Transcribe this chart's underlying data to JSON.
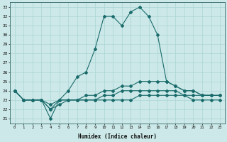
{
  "xlabel": "Humidex (Indice chaleur)",
  "ylabel": "",
  "background_color": "#cce8e8",
  "grid_color": "#aad4d4",
  "line_color": "#1a6b6b",
  "xlim": [
    -0.5,
    23.5
  ],
  "ylim": [
    20.5,
    33.5
  ],
  "yticks": [
    21,
    22,
    23,
    24,
    25,
    26,
    27,
    28,
    29,
    30,
    31,
    32,
    33
  ],
  "xticks": [
    0,
    1,
    2,
    3,
    4,
    5,
    6,
    7,
    8,
    9,
    10,
    11,
    12,
    13,
    14,
    15,
    16,
    17,
    18,
    19,
    20,
    21,
    22,
    23
  ],
  "lines": [
    {
      "x": [
        0,
        1,
        2,
        3,
        4,
        5,
        6,
        7,
        8,
        9,
        10,
        11,
        12,
        13,
        14,
        15,
        16,
        17,
        18,
        19,
        20,
        21,
        22,
        23
      ],
      "y": [
        24,
        23,
        23,
        23,
        21,
        23,
        24,
        25.5,
        26,
        28.5,
        32,
        32,
        31,
        32.5,
        33,
        32,
        30,
        25,
        24.5,
        24,
        24,
        23.5,
        23.5,
        null
      ]
    },
    {
      "x": [
        0,
        1,
        2,
        3,
        4,
        5,
        6,
        7,
        8,
        9,
        10,
        11,
        12,
        13,
        14,
        15,
        16,
        17,
        18,
        19,
        20,
        21,
        22,
        23
      ],
      "y": [
        24,
        23,
        23,
        23,
        22.5,
        23,
        23,
        23,
        23.5,
        23.5,
        24,
        24,
        24.5,
        24.5,
        25,
        25,
        25,
        25,
        24.5,
        24,
        24,
        23.5,
        23.5,
        23.5
      ]
    },
    {
      "x": [
        0,
        1,
        2,
        3,
        4,
        5,
        6,
        7,
        8,
        9,
        10,
        11,
        12,
        13,
        14,
        15,
        16,
        17,
        18,
        19,
        20,
        21,
        22,
        23
      ],
      "y": [
        24,
        23,
        23,
        23,
        22,
        23,
        23,
        23,
        23,
        23,
        23.5,
        23.5,
        24,
        24,
        24,
        24,
        24,
        24,
        24,
        23.5,
        23.5,
        23.5,
        23.5,
        23.5
      ]
    },
    {
      "x": [
        0,
        1,
        2,
        3,
        4,
        5,
        6,
        7,
        8,
        9,
        10,
        11,
        12,
        13,
        14,
        15,
        16,
        17,
        18,
        19,
        20,
        21,
        22,
        23
      ],
      "y": [
        24,
        23,
        23,
        23,
        22,
        22.5,
        23,
        23,
        23,
        23,
        23,
        23,
        23,
        23,
        23.5,
        23.5,
        23.5,
        23.5,
        23.5,
        23.5,
        23,
        23,
        23,
        23
      ]
    }
  ]
}
